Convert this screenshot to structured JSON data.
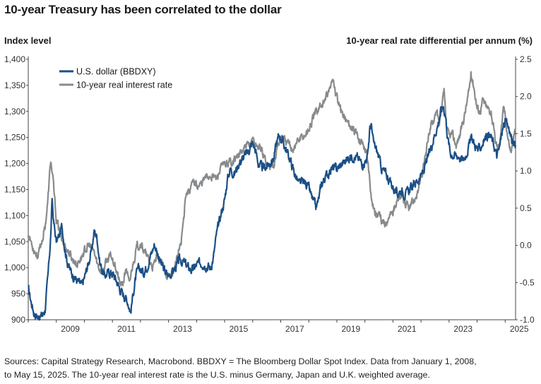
{
  "chart_data": {
    "type": "line",
    "title": "10-year Treasury has been correlated to the dollar",
    "ylabel_left": "Index level",
    "ylabel_right": "10-year real rate differential per annum (%)",
    "y_left_range": [
      900,
      1400
    ],
    "y_left_ticks": [
      900,
      950,
      1000,
      1050,
      1100,
      1150,
      1200,
      1250,
      1300,
      1350,
      1400
    ],
    "y_left_tick_labels": [
      "900",
      "950",
      "1,000",
      "1,050",
      "1,100",
      "1,150",
      "1,200",
      "1,250",
      "1,300",
      "1,350",
      "1,400"
    ],
    "y_right_range": [
      -1.0,
      2.5
    ],
    "y_right_ticks": [
      -1.0,
      -0.5,
      0.0,
      0.5,
      1.0,
      1.5,
      2.0,
      2.5
    ],
    "y_right_tick_labels": [
      "-1.0",
      "-0.5",
      "0.0",
      "0.5",
      "1.0",
      "1.5",
      "2.0",
      "2.5"
    ],
    "x_range": [
      2008.0,
      2025.37
    ],
    "x_ticks": [
      2009,
      2011,
      2013,
      2015,
      2017,
      2019,
      2021,
      2023,
      2025
    ],
    "x_tick_labels": [
      "2009",
      "2011",
      "2013",
      "2015",
      "2017",
      "2019",
      "2021",
      "2023",
      "2025"
    ],
    "legend_position": "top-left",
    "grid": false,
    "series": [
      {
        "name": "U.S. dollar (BBDXY)",
        "axis": "left",
        "color": "#1b4f86",
        "points": [
          [
            2008.0,
            960
          ],
          [
            2008.1,
            935
          ],
          [
            2008.2,
            915
          ],
          [
            2008.35,
            905
          ],
          [
            2008.5,
            908
          ],
          [
            2008.6,
            920
          ],
          [
            2008.7,
            980
          ],
          [
            2008.8,
            1060
          ],
          [
            2008.85,
            1130
          ],
          [
            2008.9,
            1090
          ],
          [
            2009.0,
            1050
          ],
          [
            2009.1,
            1060
          ],
          [
            2009.2,
            1080
          ],
          [
            2009.3,
            1040
          ],
          [
            2009.4,
            1010
          ],
          [
            2009.5,
            995
          ],
          [
            2009.6,
            985
          ],
          [
            2009.75,
            975
          ],
          [
            2009.9,
            965
          ],
          [
            2010.0,
            980
          ],
          [
            2010.15,
            1010
          ],
          [
            2010.25,
            1030
          ],
          [
            2010.35,
            1070
          ],
          [
            2010.45,
            1060
          ],
          [
            2010.55,
            1010
          ],
          [
            2010.7,
            985
          ],
          [
            2010.85,
            990
          ],
          [
            2011.0,
            990
          ],
          [
            2011.15,
            975
          ],
          [
            2011.3,
            955
          ],
          [
            2011.45,
            945
          ],
          [
            2011.55,
            935
          ],
          [
            2011.65,
            915
          ],
          [
            2011.75,
            955
          ],
          [
            2011.85,
            985
          ],
          [
            2011.95,
            1000
          ],
          [
            2012.1,
            990
          ],
          [
            2012.25,
            1005
          ],
          [
            2012.4,
            1030
          ],
          [
            2012.5,
            1045
          ],
          [
            2012.6,
            1030
          ],
          [
            2012.75,
            1005
          ],
          [
            2012.9,
            990
          ],
          [
            2013.0,
            985
          ],
          [
            2013.1,
            990
          ],
          [
            2013.25,
            1000
          ],
          [
            2013.4,
            1015
          ],
          [
            2013.55,
            1010
          ],
          [
            2013.7,
            1000
          ],
          [
            2013.85,
            995
          ],
          [
            2014.0,
            1005
          ],
          [
            2014.2,
            1010
          ],
          [
            2014.35,
            1005
          ],
          [
            2014.5,
            1000
          ],
          [
            2014.6,
            1020
          ],
          [
            2014.7,
            1060
          ],
          [
            2014.8,
            1085
          ],
          [
            2014.9,
            1110
          ],
          [
            2015.0,
            1130
          ],
          [
            2015.1,
            1170
          ],
          [
            2015.2,
            1190
          ],
          [
            2015.35,
            1180
          ],
          [
            2015.5,
            1200
          ],
          [
            2015.65,
            1210
          ],
          [
            2015.8,
            1220
          ],
          [
            2016.0,
            1240
          ],
          [
            2016.1,
            1225
          ],
          [
            2016.2,
            1200
          ],
          [
            2016.35,
            1190
          ],
          [
            2016.5,
            1195
          ],
          [
            2016.6,
            1200
          ],
          [
            2016.75,
            1210
          ],
          [
            2016.85,
            1240
          ],
          [
            2016.95,
            1255
          ],
          [
            2017.05,
            1245
          ],
          [
            2017.2,
            1225
          ],
          [
            2017.35,
            1205
          ],
          [
            2017.5,
            1180
          ],
          [
            2017.65,
            1160
          ],
          [
            2017.8,
            1165
          ],
          [
            2017.95,
            1160
          ],
          [
            2018.1,
            1135
          ],
          [
            2018.25,
            1115
          ],
          [
            2018.35,
            1130
          ],
          [
            2018.45,
            1160
          ],
          [
            2018.6,
            1175
          ],
          [
            2018.8,
            1190
          ],
          [
            2019.0,
            1190
          ],
          [
            2019.2,
            1200
          ],
          [
            2019.4,
            1210
          ],
          [
            2019.6,
            1215
          ],
          [
            2019.75,
            1210
          ],
          [
            2019.9,
            1200
          ],
          [
            2020.0,
            1205
          ],
          [
            2020.1,
            1215
          ],
          [
            2020.18,
            1270
          ],
          [
            2020.22,
            1275
          ],
          [
            2020.3,
            1240
          ],
          [
            2020.45,
            1220
          ],
          [
            2020.6,
            1190
          ],
          [
            2020.75,
            1180
          ],
          [
            2020.9,
            1165
          ],
          [
            2021.0,
            1155
          ],
          [
            2021.15,
            1140
          ],
          [
            2021.3,
            1150
          ],
          [
            2021.45,
            1140
          ],
          [
            2021.6,
            1150
          ],
          [
            2021.75,
            1160
          ],
          [
            2021.9,
            1170
          ],
          [
            2022.0,
            1175
          ],
          [
            2022.15,
            1195
          ],
          [
            2022.3,
            1220
          ],
          [
            2022.45,
            1250
          ],
          [
            2022.6,
            1275
          ],
          [
            2022.7,
            1300
          ],
          [
            2022.8,
            1310
          ],
          [
            2022.88,
            1290
          ],
          [
            2022.95,
            1250
          ],
          [
            2023.05,
            1220
          ],
          [
            2023.2,
            1215
          ],
          [
            2023.35,
            1215
          ],
          [
            2023.5,
            1205
          ],
          [
            2023.65,
            1225
          ],
          [
            2023.8,
            1250
          ],
          [
            2023.92,
            1235
          ],
          [
            2024.05,
            1225
          ],
          [
            2024.2,
            1240
          ],
          [
            2024.35,
            1255
          ],
          [
            2024.5,
            1250
          ],
          [
            2024.6,
            1235
          ],
          [
            2024.7,
            1215
          ],
          [
            2024.8,
            1230
          ],
          [
            2024.9,
            1265
          ],
          [
            2025.0,
            1280
          ],
          [
            2025.05,
            1275
          ],
          [
            2025.15,
            1265
          ],
          [
            2025.25,
            1240
          ],
          [
            2025.37,
            1235
          ]
        ]
      },
      {
        "name": "10-year real interest rate",
        "axis": "right",
        "color": "#888b8d",
        "points": [
          [
            2008.0,
            0.15
          ],
          [
            2008.1,
            0.05
          ],
          [
            2008.2,
            -0.05
          ],
          [
            2008.35,
            -0.15
          ],
          [
            2008.45,
            0.0
          ],
          [
            2008.6,
            0.25
          ],
          [
            2008.7,
            0.6
          ],
          [
            2008.8,
            1.15
          ],
          [
            2008.9,
            0.8
          ],
          [
            2009.0,
            0.35
          ],
          [
            2009.15,
            0.15
          ],
          [
            2009.3,
            0.0
          ],
          [
            2009.45,
            -0.1
          ],
          [
            2009.6,
            -0.2
          ],
          [
            2009.75,
            -0.25
          ],
          [
            2009.9,
            -0.15
          ],
          [
            2010.05,
            -0.05
          ],
          [
            2010.2,
            0.0
          ],
          [
            2010.35,
            -0.1
          ],
          [
            2010.5,
            -0.3
          ],
          [
            2010.65,
            -0.35
          ],
          [
            2010.8,
            -0.2
          ],
          [
            2010.95,
            -0.15
          ],
          [
            2011.1,
            -0.25
          ],
          [
            2011.25,
            -0.5
          ],
          [
            2011.35,
            -0.55
          ],
          [
            2011.5,
            -0.3
          ],
          [
            2011.6,
            -0.55
          ],
          [
            2011.7,
            -0.3
          ],
          [
            2011.85,
            -0.05
          ],
          [
            2012.0,
            0.05
          ],
          [
            2012.15,
            -0.1
          ],
          [
            2012.3,
            -0.2
          ],
          [
            2012.45,
            -0.3
          ],
          [
            2012.6,
            -0.15
          ],
          [
            2012.75,
            -0.25
          ],
          [
            2012.9,
            -0.35
          ],
          [
            2013.0,
            -0.45
          ],
          [
            2013.15,
            -0.35
          ],
          [
            2013.3,
            -0.2
          ],
          [
            2013.45,
            0.05
          ],
          [
            2013.55,
            0.4
          ],
          [
            2013.6,
            0.7
          ],
          [
            2013.75,
            0.75
          ],
          [
            2013.9,
            0.85
          ],
          [
            2014.1,
            0.8
          ],
          [
            2014.3,
            0.9
          ],
          [
            2014.5,
            0.95
          ],
          [
            2014.7,
            0.9
          ],
          [
            2014.9,
            1.05
          ],
          [
            2015.1,
            1.1
          ],
          [
            2015.3,
            1.15
          ],
          [
            2015.5,
            1.2
          ],
          [
            2015.7,
            1.3
          ],
          [
            2015.9,
            1.35
          ],
          [
            2016.0,
            1.45
          ],
          [
            2016.1,
            1.35
          ],
          [
            2016.3,
            1.3
          ],
          [
            2016.45,
            1.15
          ],
          [
            2016.6,
            1.05
          ],
          [
            2016.75,
            1.1
          ],
          [
            2016.9,
            1.35
          ],
          [
            2017.0,
            1.45
          ],
          [
            2017.15,
            1.4
          ],
          [
            2017.3,
            1.35
          ],
          [
            2017.45,
            1.3
          ],
          [
            2017.6,
            1.4
          ],
          [
            2017.75,
            1.45
          ],
          [
            2017.9,
            1.5
          ],
          [
            2018.05,
            1.6
          ],
          [
            2018.2,
            1.75
          ],
          [
            2018.35,
            1.85
          ],
          [
            2018.5,
            1.9
          ],
          [
            2018.65,
            2.0
          ],
          [
            2018.8,
            2.15
          ],
          [
            2018.88,
            2.25
          ],
          [
            2018.95,
            2.05
          ],
          [
            2019.1,
            1.85
          ],
          [
            2019.3,
            1.7
          ],
          [
            2019.5,
            1.6
          ],
          [
            2019.65,
            1.5
          ],
          [
            2019.8,
            1.45
          ],
          [
            2019.95,
            1.35
          ],
          [
            2020.05,
            1.25
          ],
          [
            2020.15,
            1.0
          ],
          [
            2020.25,
            0.6
          ],
          [
            2020.35,
            0.45
          ],
          [
            2020.5,
            0.4
          ],
          [
            2020.6,
            0.3
          ],
          [
            2020.7,
            0.3
          ],
          [
            2020.85,
            0.4
          ],
          [
            2021.0,
            0.45
          ],
          [
            2021.15,
            0.6
          ],
          [
            2021.3,
            0.65
          ],
          [
            2021.45,
            0.55
          ],
          [
            2021.6,
            0.5
          ],
          [
            2021.75,
            0.6
          ],
          [
            2021.9,
            0.75
          ],
          [
            2022.05,
            0.95
          ],
          [
            2022.15,
            1.2
          ],
          [
            2022.3,
            1.55
          ],
          [
            2022.45,
            1.7
          ],
          [
            2022.55,
            1.85
          ],
          [
            2022.65,
            1.6
          ],
          [
            2022.75,
            1.9
          ],
          [
            2022.82,
            2.05
          ],
          [
            2022.9,
            1.6
          ],
          [
            2023.0,
            1.45
          ],
          [
            2023.1,
            1.5
          ],
          [
            2023.25,
            1.35
          ],
          [
            2023.4,
            1.5
          ],
          [
            2023.55,
            1.75
          ],
          [
            2023.7,
            2.05
          ],
          [
            2023.78,
            2.3
          ],
          [
            2023.88,
            2.15
          ],
          [
            2024.0,
            1.85
          ],
          [
            2024.1,
            1.8
          ],
          [
            2024.2,
            1.95
          ],
          [
            2024.35,
            1.85
          ],
          [
            2024.5,
            1.8
          ],
          [
            2024.65,
            1.4
          ],
          [
            2024.75,
            1.3
          ],
          [
            2024.85,
            1.55
          ],
          [
            2024.95,
            1.85
          ],
          [
            2025.0,
            1.75
          ],
          [
            2025.1,
            1.45
          ],
          [
            2025.2,
            1.25
          ],
          [
            2025.3,
            1.45
          ],
          [
            2025.37,
            1.55
          ]
        ]
      }
    ]
  },
  "footer": {
    "line1": "Sources: Capital Strategy Research, Macrobond. BBDXY = The Bloomberg Dollar Spot Index. Data from January 1, 2008,",
    "line2": "to May 15, 2025. The 10-year real interest rate is the U.S. minus Germany, Japan and U.K. weighted average."
  }
}
